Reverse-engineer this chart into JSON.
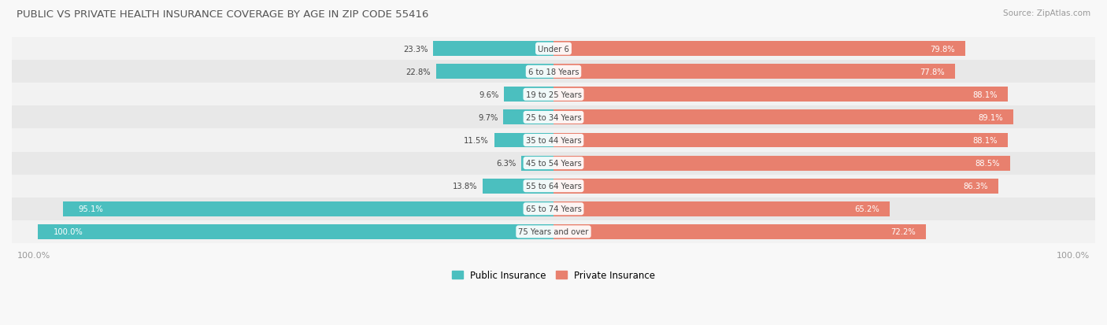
{
  "title": "PUBLIC VS PRIVATE HEALTH INSURANCE COVERAGE BY AGE IN ZIP CODE 55416",
  "source": "Source: ZipAtlas.com",
  "categories": [
    "Under 6",
    "6 to 18 Years",
    "19 to 25 Years",
    "25 to 34 Years",
    "35 to 44 Years",
    "45 to 54 Years",
    "55 to 64 Years",
    "65 to 74 Years",
    "75 Years and over"
  ],
  "public_values": [
    23.3,
    22.8,
    9.6,
    9.7,
    11.5,
    6.3,
    13.8,
    95.1,
    100.0
  ],
  "private_values": [
    79.8,
    77.8,
    88.1,
    89.1,
    88.1,
    88.5,
    86.3,
    65.2,
    72.2
  ],
  "public_color": "#4BBFBF",
  "private_color_large": "#E8806E",
  "private_color_small": "#F2AFA5",
  "row_bg_color_1": "#F2F2F2",
  "row_bg_color_2": "#E8E8E8",
  "label_color_dark": "#444444",
  "label_color_white": "#FFFFFF",
  "title_color": "#555555",
  "axis_label_color": "#999999",
  "figsize": [
    14.06,
    4.14
  ],
  "dpi": 100
}
